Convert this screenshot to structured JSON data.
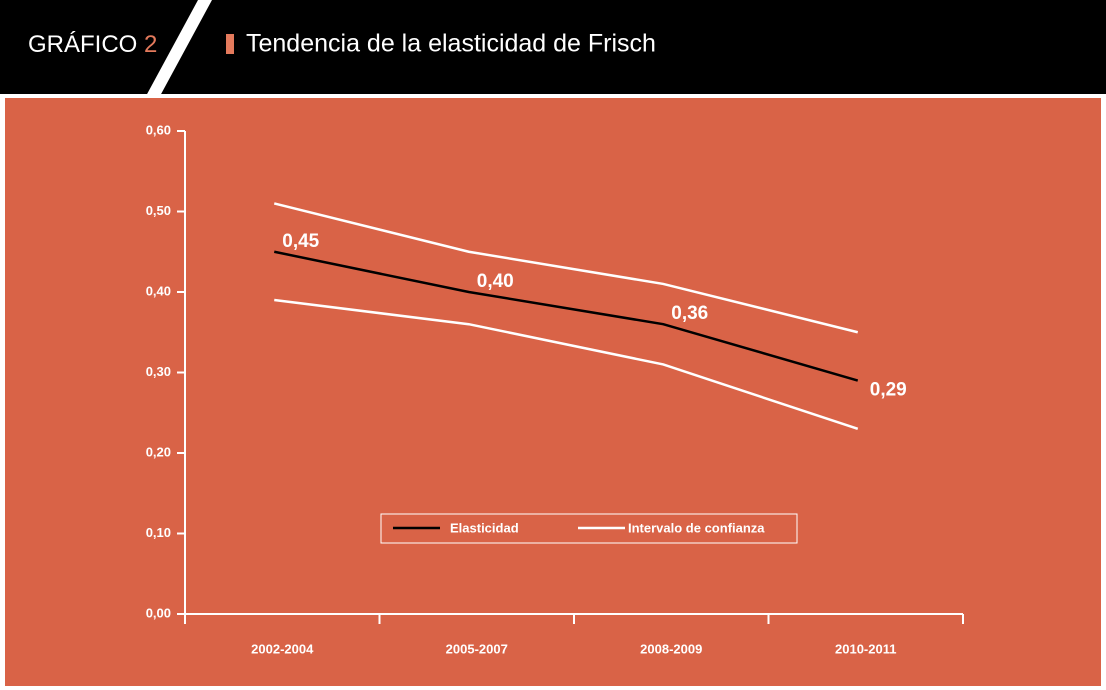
{
  "chart_data": {
    "type": "line",
    "figure_label": "GRÁFICO",
    "figure_number": "2",
    "title": "Tendencia de la elasticidad de Frisch",
    "categories": [
      "2002-2004",
      "2005-2007",
      "2008-2009",
      "2010-2011"
    ],
    "series": [
      {
        "name": "Elasticidad",
        "color": "#000000",
        "values": [
          0.45,
          0.4,
          0.36,
          0.29
        ],
        "value_labels": [
          "0,45",
          "0,40",
          "0,36",
          "0,29"
        ]
      },
      {
        "name": "Intervalo de confianza",
        "color": "#ffffff",
        "upper": [
          0.51,
          0.45,
          0.41,
          0.35
        ],
        "lower": [
          0.39,
          0.36,
          0.31,
          0.23
        ]
      }
    ],
    "ylim": [
      0,
      0.6
    ],
    "yticks": [
      {
        "value": 0,
        "label": "0,00"
      },
      {
        "value": 0.1,
        "label": "0,10"
      },
      {
        "value": 0.2,
        "label": "0,20"
      },
      {
        "value": 0.3,
        "label": "0,30"
      },
      {
        "value": 0.4,
        "label": "0,40"
      },
      {
        "value": 0.5,
        "label": "0,50"
      },
      {
        "value": 0.6,
        "label": "0,60"
      }
    ],
    "legend": "bottom-center"
  }
}
